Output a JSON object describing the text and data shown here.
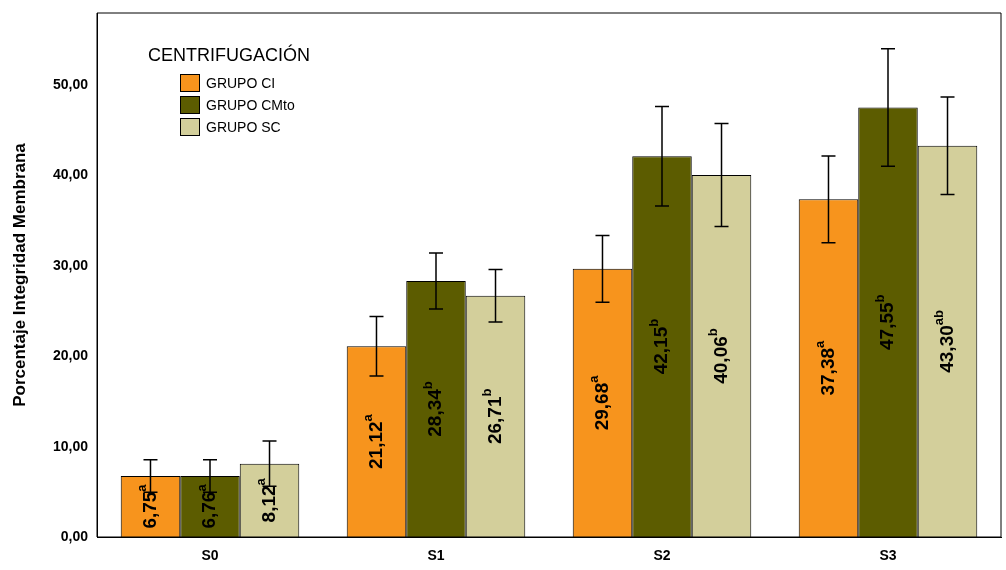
{
  "chart_data": {
    "type": "bar",
    "ylabel": "Porcentaje Integridad Membrana",
    "legend_title": "CENTRIFUGACIÓN",
    "legend": "top left",
    "grid": false,
    "categories": [
      "S0",
      "S1",
      "S2",
      "S3"
    ],
    "ylim": [
      0,
      58
    ],
    "yticks": [
      {
        "value": 0,
        "label": "0,00"
      },
      {
        "value": 10,
        "label": "10,00"
      },
      {
        "value": 20,
        "label": "20,00"
      },
      {
        "value": 30,
        "label": "30,00"
      },
      {
        "value": 40,
        "label": "40,00"
      },
      {
        "value": 50,
        "label": "50,00"
      }
    ],
    "series": [
      {
        "name": "GRUPO CI",
        "color": "#f7941d",
        "values": [
          6.75,
          21.12,
          29.68,
          37.38
        ],
        "errors": [
          1.8,
          3.3,
          3.7,
          4.8
        ],
        "value_labels": [
          "6,75$^{a}$",
          "21,12$^{a}$",
          "29,68$^{a}$",
          "37,38$^{a}$"
        ]
      },
      {
        "name": "GRUPO CMto",
        "color": "#5c5c00",
        "values": [
          6.76,
          28.34,
          42.15,
          47.55
        ],
        "errors": [
          1.8,
          3.1,
          5.5,
          6.5
        ],
        "value_labels": [
          "6,76$^{a}$",
          "28,34$^{b}$",
          "42,15$^{b}$",
          "47,55$^{b}$"
        ]
      },
      {
        "name": "GRUPO SC",
        "color": "#d3cf9b",
        "values": [
          8.12,
          26.71,
          40.06,
          43.3
        ],
        "errors": [
          2.5,
          2.9,
          5.7,
          5.4
        ],
        "value_labels": [
          "8,12$^{a}$",
          "26,71$^{b}$",
          "40,06$^{b}$",
          "43,30$^{ab}$"
        ]
      }
    ]
  }
}
